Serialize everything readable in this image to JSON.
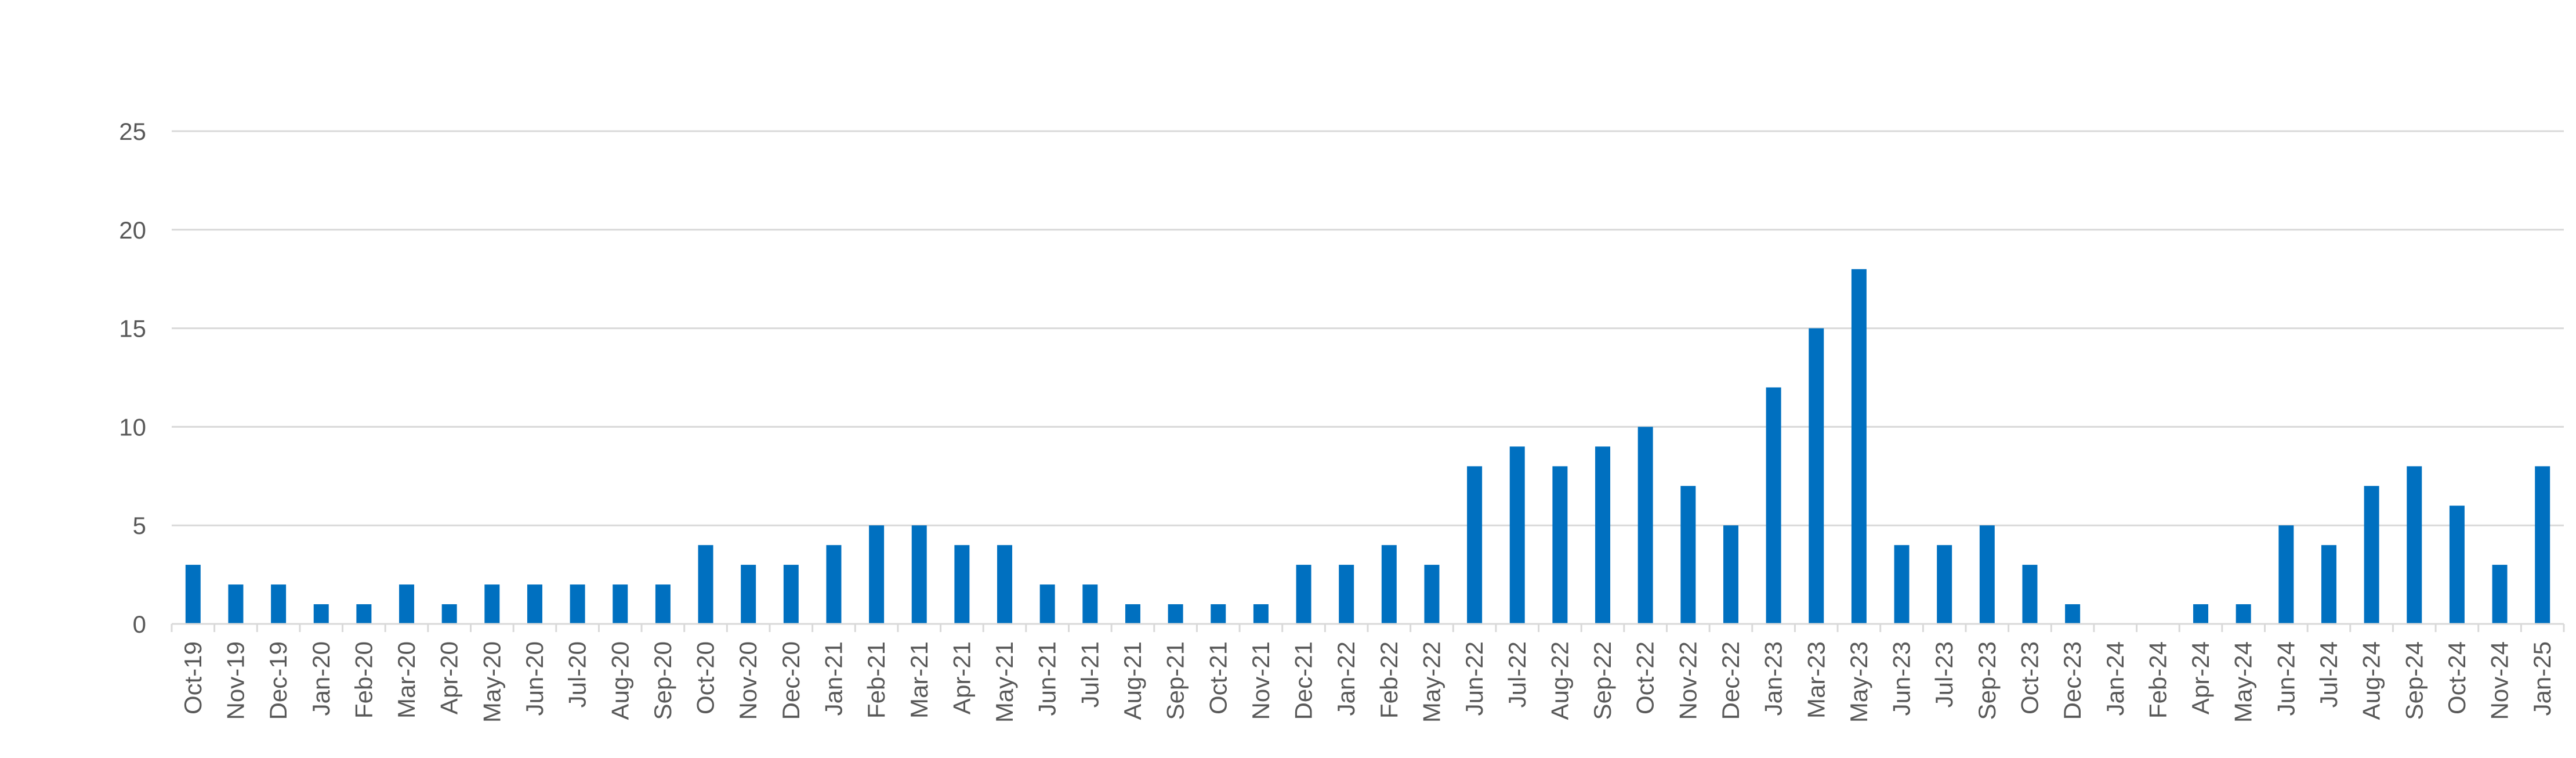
{
  "chart_data": {
    "type": "bar",
    "title": "",
    "xlabel": "",
    "ylabel": "",
    "ylim": [
      0,
      25
    ],
    "yticks": [
      0,
      5,
      10,
      15,
      20,
      25
    ],
    "grid": true,
    "legend": "none",
    "bar_color": "#0070c0",
    "categories": [
      "Oct-19",
      "Nov-19",
      "Dec-19",
      "Jan-20",
      "Feb-20",
      "Mar-20",
      "Apr-20",
      "May-20",
      "Jun-20",
      "Jul-20",
      "Aug-20",
      "Sep-20",
      "Oct-20",
      "Nov-20",
      "Dec-20",
      "Jan-21",
      "Feb-21",
      "Mar-21",
      "Apr-21",
      "May-21",
      "Jun-21",
      "Jul-21",
      "Aug-21",
      "Sep-21",
      "Oct-21",
      "Nov-21",
      "Dec-21",
      "Jan-22",
      "Feb-22",
      "May-22",
      "Jun-22",
      "Jul-22",
      "Aug-22",
      "Sep-22",
      "Oct-22",
      "Nov-22",
      "Dec-22",
      "Jan-23",
      "Mar-23",
      "May-23",
      "Jun-23",
      "Jul-23",
      "Sep-23",
      "Oct-23",
      "Dec-23",
      "Jan-24",
      "Feb-24",
      "Apr-24",
      "May-24",
      "Jun-24",
      "Jul-24",
      "Aug-24",
      "Sep-24",
      "Oct-24",
      "Nov-24",
      "Jan-25"
    ],
    "values": [
      3,
      2,
      2,
      1,
      1,
      2,
      1,
      2,
      2,
      2,
      2,
      2,
      4,
      3,
      3,
      4,
      5,
      5,
      4,
      4,
      2,
      2,
      1,
      1,
      1,
      1,
      3,
      3,
      4,
      3,
      8,
      9,
      8,
      9,
      10,
      7,
      5,
      12,
      15,
      18,
      4,
      4,
      5,
      3,
      1,
      0,
      0,
      1,
      1,
      5,
      4,
      7,
      8,
      6,
      3,
      8
    ]
  }
}
